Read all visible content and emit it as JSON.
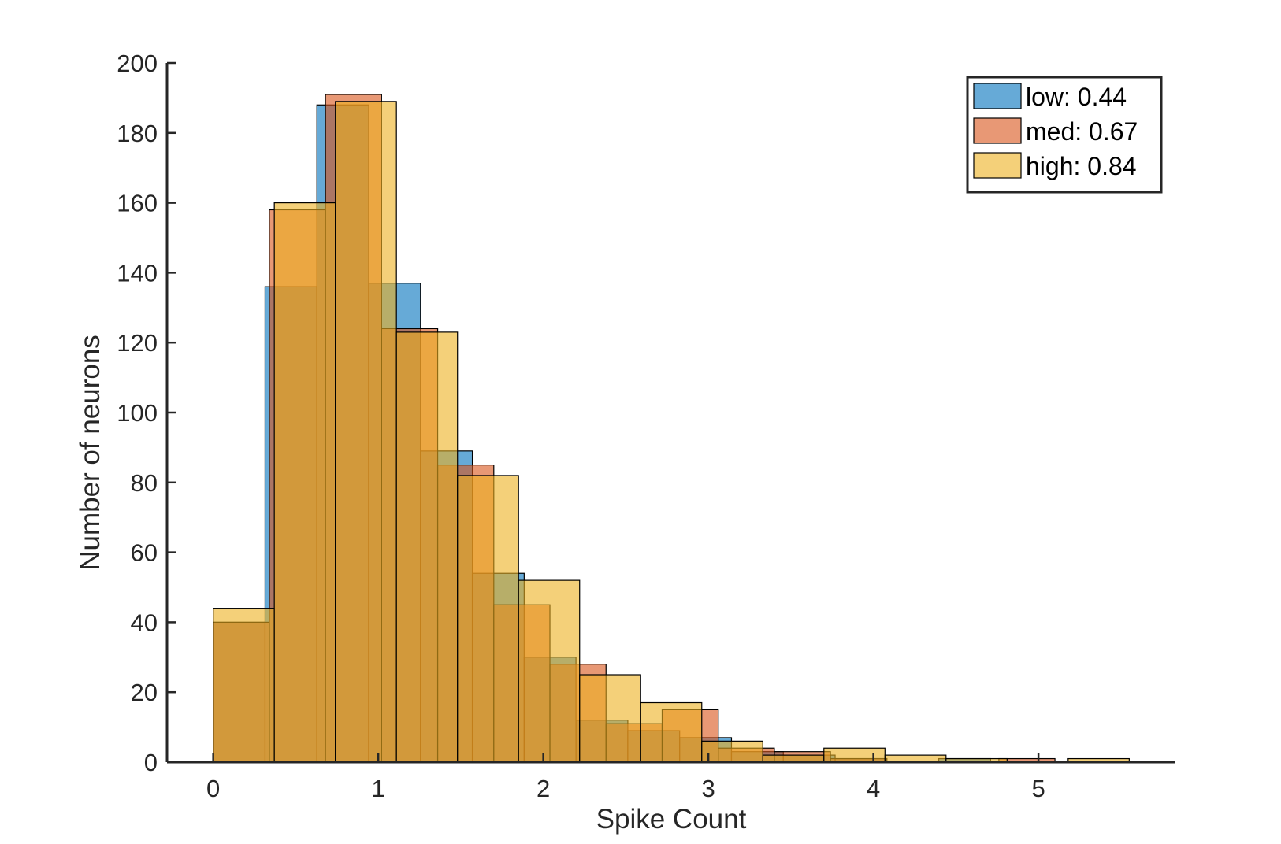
{
  "chart_data": {
    "type": "bar",
    "subtype": "overlaid-histogram",
    "title": "",
    "xlabel": "Spike Count",
    "ylabel": "Number of neurons",
    "xlim": [
      -0.28,
      5.83
    ],
    "ylim": [
      0,
      200
    ],
    "xticks": [
      "0",
      "1",
      "2",
      "3",
      "4",
      "5"
    ],
    "yticks": [
      "0",
      "20",
      "40",
      "60",
      "80",
      "100",
      "120",
      "140",
      "160",
      "180",
      "200"
    ],
    "grid": false,
    "legend_position": "top-right",
    "series": [
      {
        "name": "low: 0.44",
        "color": "#0072BD",
        "bin_edges": [
          0.0,
          0.314,
          0.628,
          0.942,
          1.256,
          1.57,
          1.884,
          2.198,
          2.512,
          2.826,
          3.14,
          3.454,
          3.768,
          4.082,
          4.396,
          4.71
        ],
        "counts": [
          40,
          136,
          188,
          137,
          89,
          54,
          30,
          12,
          9,
          7,
          3,
          2,
          1,
          0,
          1
        ]
      },
      {
        "name": "med: 0.67",
        "color": "#D95319",
        "bin_edges": [
          0.0,
          0.34,
          0.68,
          1.02,
          1.36,
          1.7,
          2.04,
          2.38,
          2.72,
          3.06,
          3.4,
          3.74,
          4.08,
          4.42,
          4.76,
          5.1
        ],
        "counts": [
          40,
          158,
          191,
          124,
          85,
          45,
          28,
          11,
          15,
          4,
          3,
          1,
          0,
          0,
          1
        ]
      },
      {
        "name": "high: 0.84",
        "color": "#EDB120",
        "bin_edges": [
          0.0,
          0.37,
          0.74,
          1.11,
          1.48,
          1.85,
          2.22,
          2.59,
          2.96,
          3.33,
          3.7,
          4.07,
          4.44,
          4.81,
          5.18,
          5.55
        ],
        "counts": [
          44,
          160,
          189,
          123,
          82,
          52,
          25,
          17,
          6,
          2,
          4,
          2,
          1,
          0,
          1
        ]
      }
    ]
  }
}
